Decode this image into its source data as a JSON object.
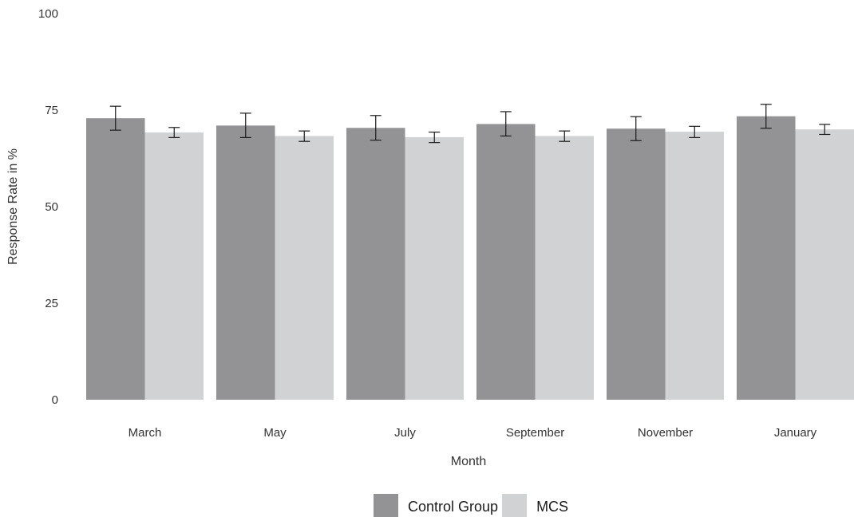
{
  "chart_data": {
    "type": "bar",
    "title": "",
    "xlabel": "Month",
    "ylabel": "Response Rate in %",
    "categories": [
      "March",
      "May",
      "July",
      "September",
      "November",
      "January"
    ],
    "ylim": [
      0,
      100
    ],
    "yticks": [
      0,
      25,
      50,
      75,
      100
    ],
    "grid": false,
    "legend_position": "bottom",
    "series": [
      {
        "name": "Control Group",
        "color": "#939396",
        "values": [
          72.9,
          71.0,
          70.4,
          71.4,
          70.2,
          73.4
        ],
        "error_low": [
          69.8,
          67.9,
          67.2,
          68.3,
          67.1,
          70.3
        ],
        "error_high": [
          76.0,
          74.2,
          73.6,
          74.6,
          73.3,
          76.5
        ]
      },
      {
        "name": "MCS",
        "color": "#d1d2d4",
        "values": [
          69.2,
          68.3,
          68.0,
          68.3,
          69.4,
          70.0
        ],
        "error_low": [
          67.9,
          66.9,
          66.6,
          66.9,
          67.9,
          68.7
        ],
        "error_high": [
          70.5,
          69.6,
          69.3,
          69.6,
          70.8,
          71.3
        ]
      }
    ]
  }
}
